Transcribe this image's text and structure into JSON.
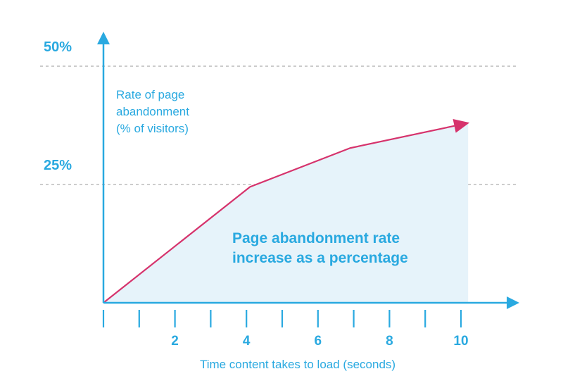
{
  "chart_data": {
    "type": "area",
    "title": "",
    "xlabel": "Time content takes to load (seconds)",
    "ylabel_lines": [
      "Rate of page",
      "abandonment",
      "(% of visitors)"
    ],
    "annotation_lines": [
      "Page abandonment rate",
      "increase as a percentage"
    ],
    "x_tick_values": [
      2,
      4,
      6,
      8,
      10
    ],
    "x_tick_labels": [
      "2",
      "4",
      "6",
      "8",
      "10"
    ],
    "x_minor_ticks": [
      0,
      1,
      2,
      3,
      4,
      5,
      6,
      7,
      8,
      9,
      10
    ],
    "y_gridlines": [
      25,
      50
    ],
    "y_tick_labels": [
      "25%",
      "50%"
    ],
    "xlim": [
      0,
      11.5
    ],
    "ylim": [
      0,
      55
    ],
    "series": [
      {
        "x": [
          0,
          4.1,
          6.9,
          10.2
        ],
        "y": [
          0,
          24.5,
          32.7,
          38
        ]
      }
    ],
    "colors": {
      "axis": "#29a9e0",
      "text": "#29a9e0",
      "line": "#d6336c",
      "fill": "#e6f3fa",
      "grid": "#888888"
    }
  }
}
